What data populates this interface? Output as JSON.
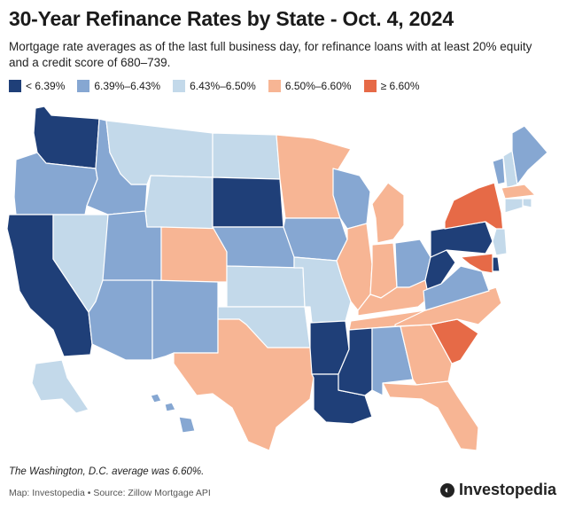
{
  "title": "30-Year Refinance Rates by State - Oct. 4, 2024",
  "subtitle": "Mortgage rate averages as of the last full business day, for refinance loans with at least 20% equity and a credit score of 680–739.",
  "legend": [
    {
      "label": "< 6.39%",
      "color": "#1f3f78"
    },
    {
      "label": "6.39%–6.43%",
      "color": "#86a7d2"
    },
    {
      "label": "6.43%–6.50%",
      "color": "#c3d9ea"
    },
    {
      "label": "6.50%–6.60%",
      "color": "#f7b594"
    },
    {
      "label": "≥ 6.60%",
      "color": "#e66a47"
    }
  ],
  "states": [
    {
      "name": "WA",
      "bin": 0
    },
    {
      "name": "OR",
      "bin": 1
    },
    {
      "name": "CA",
      "bin": 0
    },
    {
      "name": "NV",
      "bin": 2
    },
    {
      "name": "ID",
      "bin": 1
    },
    {
      "name": "MT",
      "bin": 2
    },
    {
      "name": "WY",
      "bin": 2
    },
    {
      "name": "UT",
      "bin": 1
    },
    {
      "name": "AZ",
      "bin": 1
    },
    {
      "name": "CO",
      "bin": 3
    },
    {
      "name": "NM",
      "bin": 1
    },
    {
      "name": "ND",
      "bin": 2
    },
    {
      "name": "SD",
      "bin": 0
    },
    {
      "name": "NE",
      "bin": 1
    },
    {
      "name": "KS",
      "bin": 2
    },
    {
      "name": "OK",
      "bin": 2
    },
    {
      "name": "TX",
      "bin": 3
    },
    {
      "name": "MN",
      "bin": 3
    },
    {
      "name": "IA",
      "bin": 1
    },
    {
      "name": "MO",
      "bin": 2
    },
    {
      "name": "AR",
      "bin": 0
    },
    {
      "name": "LA",
      "bin": 0
    },
    {
      "name": "WI",
      "bin": 1
    },
    {
      "name": "IL",
      "bin": 3
    },
    {
      "name": "MI",
      "bin": 3
    },
    {
      "name": "IN",
      "bin": 3
    },
    {
      "name": "OH",
      "bin": 1
    },
    {
      "name": "KY",
      "bin": 3
    },
    {
      "name": "TN",
      "bin": 3
    },
    {
      "name": "MS",
      "bin": 0
    },
    {
      "name": "AL",
      "bin": 1
    },
    {
      "name": "GA",
      "bin": 3
    },
    {
      "name": "FL",
      "bin": 3
    },
    {
      "name": "SC",
      "bin": 4
    },
    {
      "name": "NC",
      "bin": 3
    },
    {
      "name": "VA",
      "bin": 1
    },
    {
      "name": "WV",
      "bin": 0
    },
    {
      "name": "PA",
      "bin": 0
    },
    {
      "name": "NY",
      "bin": 4
    },
    {
      "name": "VT",
      "bin": 1
    },
    {
      "name": "NH",
      "bin": 2
    },
    {
      "name": "ME",
      "bin": 1
    },
    {
      "name": "MA",
      "bin": 3
    },
    {
      "name": "RI",
      "bin": 2
    },
    {
      "name": "CT",
      "bin": 2
    },
    {
      "name": "NJ",
      "bin": 2
    },
    {
      "name": "DE",
      "bin": 0
    },
    {
      "name": "MD",
      "bin": 4
    },
    {
      "name": "AK",
      "bin": 2
    },
    {
      "name": "HI",
      "bin": 1
    }
  ],
  "footnote": "The Washington, D.C. average was 6.60%.",
  "credit": "Map: Investopedia • Source: Zillow Mortgage API",
  "brand": "Investopedia"
}
